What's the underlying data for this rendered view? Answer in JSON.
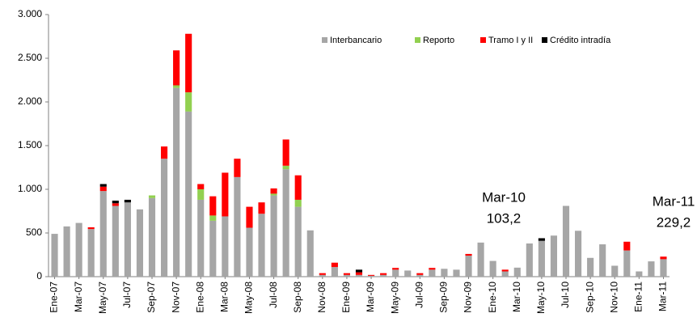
{
  "chart_data": {
    "type": "stacked_bar",
    "categories": [
      "Ene-07",
      null,
      "Mar-07",
      null,
      "May-07",
      null,
      "Jul-07",
      null,
      "Sep-07",
      null,
      "Nov-07",
      null,
      "Ene-08",
      null,
      "Mar-08",
      null,
      "May-08",
      null,
      "Jul-08",
      null,
      "Sep-08",
      null,
      "Nov-08",
      null,
      "Ene-09",
      null,
      "Mar-09",
      null,
      "May-09",
      null,
      "Jul-09",
      null,
      "Sep-09",
      null,
      "Nov-09",
      null,
      "Ene-10",
      null,
      "Mar-10",
      null,
      "May-10",
      null,
      "Jul-10",
      null,
      "Sep-10",
      null,
      "Nov-10",
      null,
      "Ene-11",
      null,
      "Mar-11"
    ],
    "series": [
      {
        "name": "Interbancario",
        "color": "#a6a6a6",
        "values": [
          490,
          575,
          615,
          545,
          980,
          810,
          850,
          770,
          900,
          1350,
          2160,
          1890,
          880,
          640,
          690,
          1140,
          560,
          720,
          930,
          1230,
          800,
          530,
          20,
          110,
          20,
          20,
          10,
          20,
          80,
          70,
          20,
          80,
          90,
          80,
          240,
          390,
          180,
          60,
          103.2,
          380,
          410,
          470,
          810,
          525,
          215,
          370,
          125,
          300,
          60,
          175,
          200
        ]
      },
      {
        "name": "Reporto",
        "color": "#92d050",
        "values": [
          0,
          0,
          0,
          0,
          0,
          0,
          0,
          0,
          30,
          0,
          30,
          220,
          120,
          60,
          0,
          0,
          0,
          0,
          20,
          40,
          80,
          0,
          0,
          0,
          0,
          0,
          0,
          0,
          0,
          0,
          0,
          0,
          0,
          0,
          0,
          0,
          0,
          0,
          0,
          0,
          0,
          0,
          0,
          0,
          0,
          0,
          0,
          0,
          0,
          0,
          0
        ]
      },
      {
        "name": "Tramo I y II",
        "color": "#ff0000",
        "values": [
          0,
          0,
          0,
          20,
          50,
          30,
          0,
          0,
          0,
          140,
          400,
          670,
          60,
          220,
          500,
          210,
          240,
          130,
          60,
          300,
          280,
          0,
          20,
          50,
          20,
          30,
          10,
          20,
          20,
          0,
          20,
          20,
          0,
          0,
          20,
          0,
          0,
          20,
          0,
          0,
          0,
          0,
          0,
          0,
          0,
          0,
          0,
          100,
          0,
          0,
          29.2
        ]
      },
      {
        "name": "Crédito intradía",
        "color": "#000000",
        "values": [
          0,
          0,
          0,
          0,
          30,
          30,
          30,
          0,
          0,
          0,
          0,
          0,
          0,
          0,
          0,
          0,
          0,
          0,
          0,
          0,
          0,
          0,
          0,
          0,
          0,
          30,
          0,
          0,
          0,
          0,
          0,
          0,
          0,
          0,
          0,
          0,
          0,
          0,
          0,
          0,
          30,
          0,
          0,
          0,
          0,
          0,
          0,
          0,
          0,
          0,
          0
        ]
      }
    ],
    "ylim": [
      0,
      3000
    ],
    "yticks": [
      0,
      500,
      {
        "value": 1000,
        "label": "1.000"
      },
      {
        "value": 1500,
        "label": "1.500"
      },
      {
        "value": 2000,
        "label": "2.000"
      },
      {
        "value": 2500,
        "label": "2.500"
      },
      {
        "value": 3000,
        "label": "3.000"
      }
    ],
    "grid": false,
    "legend": "top-right",
    "annotations": [
      {
        "lines": [
          "Mar-10",
          "103,2"
        ]
      },
      {
        "lines": [
          "Mar-11",
          "229,2"
        ]
      }
    ]
  }
}
